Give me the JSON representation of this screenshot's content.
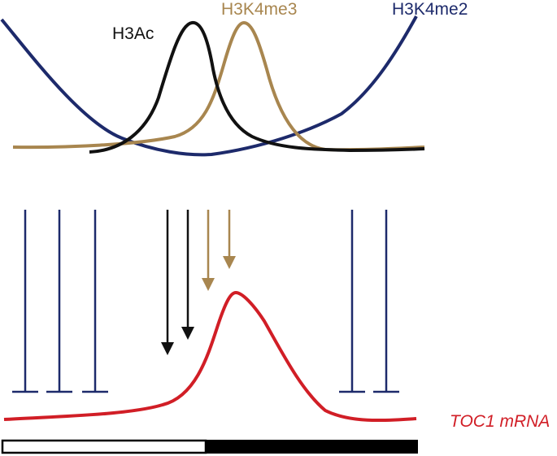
{
  "labels": {
    "h3ac": "H3Ac",
    "h3k4me3": "H3K4me3",
    "h3k4me2": "H3K4me2",
    "toc1_mrna": "TOC1 mRNA"
  },
  "colors": {
    "h3ac": "#111111",
    "h3k4me3": "#a8864f",
    "h3k4me2": "#1d2a6b",
    "toc1_mrna": "#d11e26",
    "day_bar": "#ffffff",
    "night_bar": "#000000"
  },
  "legend_markers": {
    "activators": [
      "black-arrow",
      "black-arrow",
      "tan-arrow",
      "tan-arrow"
    ],
    "repressors": [
      "blue-tbar",
      "blue-tbar",
      "blue-tbar",
      "blue-tbar",
      "blue-tbar"
    ]
  },
  "light_dark_bar": {
    "segments": [
      "day",
      "night"
    ],
    "day_fraction": 0.49
  }
}
